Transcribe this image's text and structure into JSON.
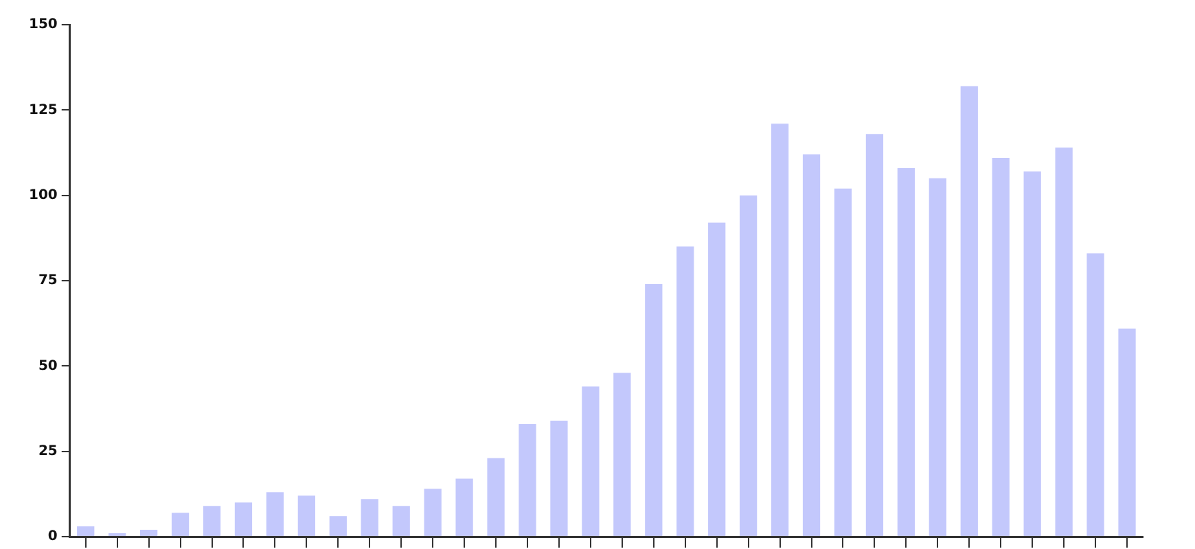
{
  "chart_data": {
    "type": "bar",
    "categories": [
      null,
      null,
      null,
      null,
      null,
      null,
      null,
      null,
      null,
      null,
      null,
      null,
      null,
      null,
      null,
      null,
      null,
      null,
      null,
      null,
      null,
      null,
      null,
      null,
      null,
      null,
      null,
      null,
      null,
      null,
      null,
      null,
      null,
      null
    ],
    "values": [
      3,
      1,
      2,
      7,
      9,
      10,
      13,
      12,
      6,
      11,
      9,
      14,
      17,
      23,
      33,
      34,
      44,
      48,
      74,
      85,
      92,
      100,
      121,
      112,
      102,
      118,
      108,
      105,
      132,
      111,
      107,
      114,
      83,
      61
    ],
    "color": "#c3c8fc",
    "ylim": [
      0,
      150
    ],
    "yticks": [
      0,
      25,
      50,
      75,
      100,
      125,
      150
    ],
    "grid": false,
    "tick_labels": "y"
  }
}
